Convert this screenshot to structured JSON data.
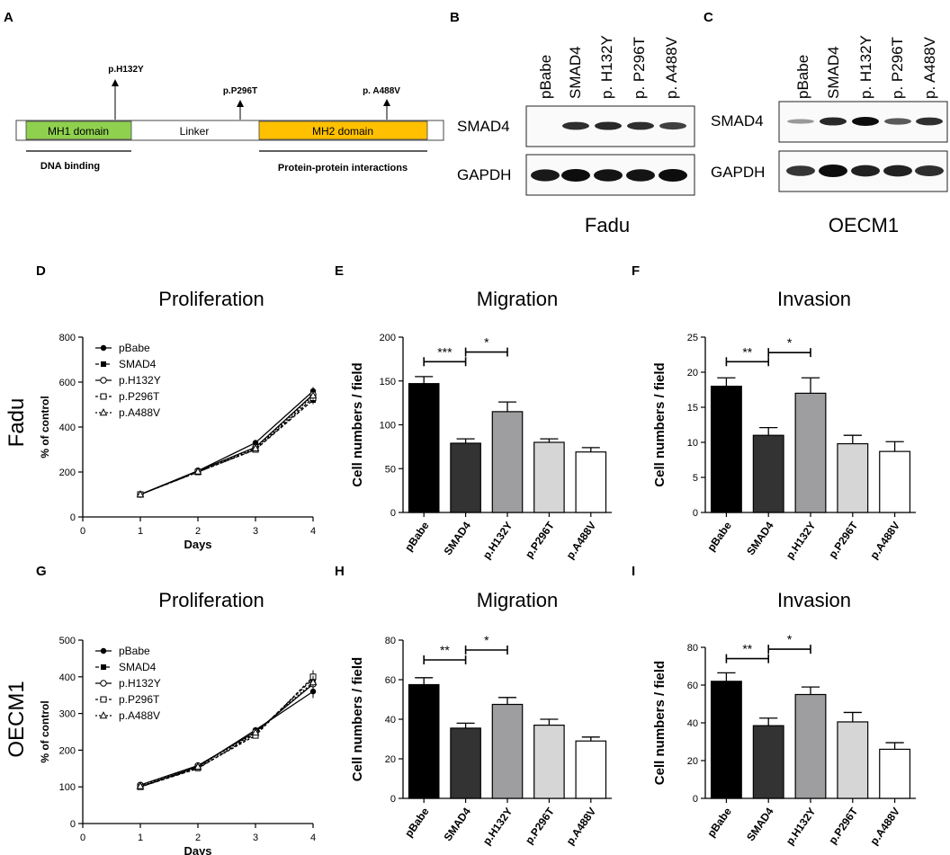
{
  "figure_label": "SMAD4 mutant figure",
  "panel_letters": {
    "A": "A",
    "B": "B",
    "C": "C",
    "D": "D",
    "E": "E",
    "F": "F",
    "G": "G",
    "H": "H",
    "I": "I"
  },
  "domain_map": {
    "mh1": "MH1 domain",
    "linker": "Linker",
    "mh2": "MH2 domain",
    "dna_binding": "DNA binding",
    "ppi": "Protein-protein interactions",
    "mut1": "p.H132Y",
    "mut2": "p.P296T",
    "mut3": "p. A488V",
    "colors": {
      "mh1": "#8fd14f",
      "mh2": "#ffc000"
    }
  },
  "western": {
    "lanes_b": [
      "pBabe",
      "SMAD4",
      "p. H132Y",
      "p. P296T",
      "p. A488V"
    ],
    "lanes_c": [
      "pBabe",
      "SMAD4",
      "p. H132Y",
      "p. P296T",
      "p. A488V"
    ],
    "row1": "SMAD4",
    "row2": "GAPDH",
    "cell_b": "Fadu",
    "cell_c": "OECM1",
    "smad4_b": [
      0.0,
      0.8,
      0.85,
      0.8,
      0.7
    ],
    "gapdh_b": [
      0.9,
      1.0,
      0.95,
      0.95,
      1.0
    ],
    "smad4_c": [
      0.2,
      0.85,
      1.0,
      0.55,
      0.8
    ],
    "gapdh_c": [
      0.7,
      1.0,
      0.85,
      0.85,
      0.75
    ]
  },
  "row_labels": {
    "fadu": "Fadu",
    "oecm1": "OECM1"
  },
  "chart_data": [
    {
      "panel": "D",
      "type": "line",
      "title": "Proliferation",
      "xlabel": "Days",
      "ylabel": "% of control",
      "x": [
        1,
        2,
        3,
        4
      ],
      "xlim": [
        0,
        4
      ],
      "ylim": [
        0,
        800
      ],
      "xticks": [
        "0",
        "1",
        "2",
        "3",
        "4"
      ],
      "yticks": [
        "0",
        "200",
        "400",
        "600",
        "800"
      ],
      "series": [
        {
          "name": "pBabe",
          "values": [
            100,
            205,
            330,
            560
          ]
        },
        {
          "name": "SMAD4",
          "values": [
            100,
            200,
            300,
            520
          ]
        },
        {
          "name": "p.H132Y",
          "values": [
            100,
            205,
            310,
            545
          ]
        },
        {
          "name": "p.P296T",
          "values": [
            100,
            200,
            300,
            530
          ]
        },
        {
          "name": "p.A488V",
          "values": [
            100,
            202,
            305,
            540
          ]
        }
      ]
    },
    {
      "panel": "E",
      "type": "bar",
      "title": "Migration",
      "ylabel": "Cell numbers / field",
      "categories": [
        "pBabe",
        "SMAD4",
        "p.H132Y",
        "p.P296T",
        "p.A488V"
      ],
      "values": [
        147,
        79,
        115,
        80,
        69
      ],
      "errors": [
        8,
        5,
        11,
        4,
        5
      ],
      "ylim": [
        0,
        200
      ],
      "yticks": [
        "0",
        "50",
        "100",
        "150",
        "200"
      ],
      "sig": [
        {
          "from": 0,
          "to": 1,
          "label": "***",
          "y": 172
        },
        {
          "from": 1,
          "to": 2,
          "label": "*",
          "y": 183
        }
      ]
    },
    {
      "panel": "F",
      "type": "bar",
      "title": "Invasion",
      "ylabel": "Cell numbers / field",
      "categories": [
        "pBabe",
        "SMAD4",
        "p.H132Y",
        "p.P296T",
        "p.A488V"
      ],
      "values": [
        18,
        11,
        17,
        9.8,
        8.7
      ],
      "errors": [
        1.2,
        1.1,
        2.2,
        1.2,
        1.4
      ],
      "ylim": [
        0,
        25
      ],
      "yticks": [
        "0",
        "5",
        "10",
        "15",
        "20",
        "25"
      ],
      "sig": [
        {
          "from": 0,
          "to": 1,
          "label": "**",
          "y": 21.5
        },
        {
          "from": 1,
          "to": 2,
          "label": "*",
          "y": 22.8
        }
      ]
    },
    {
      "panel": "G",
      "type": "line",
      "title": "Proliferation",
      "xlabel": "Days",
      "ylabel": "% of control",
      "x": [
        1,
        2,
        3,
        4
      ],
      "xlim": [
        0,
        4
      ],
      "ylim": [
        0,
        500
      ],
      "xticks": [
        "0",
        "1",
        "2",
        "3",
        "4"
      ],
      "yticks": [
        "0",
        "100",
        "200",
        "300",
        "400",
        "500"
      ],
      "series": [
        {
          "name": "pBabe",
          "values": [
            100,
            155,
            255,
            360
          ]
        },
        {
          "name": "SMAD4",
          "values": [
            100,
            150,
            245,
            395
          ]
        },
        {
          "name": "p.H132Y",
          "values": [
            105,
            158,
            250,
            380
          ]
        },
        {
          "name": "p.P296T",
          "values": [
            100,
            152,
            240,
            400
          ]
        },
        {
          "name": "p.A488V",
          "values": [
            102,
            155,
            248,
            385
          ]
        }
      ]
    },
    {
      "panel": "H",
      "type": "bar",
      "title": "Migration",
      "ylabel": "Cell numbers / field",
      "categories": [
        "pBabe",
        "SMAD4",
        "p.H132Y",
        "p.P296T",
        "p.A488V"
      ],
      "values": [
        57.5,
        35.5,
        47.5,
        37,
        29
      ],
      "errors": [
        3.5,
        2.5,
        3.5,
        3,
        2
      ],
      "ylim": [
        0,
        80
      ],
      "yticks": [
        "0",
        "20",
        "40",
        "60",
        "80"
      ],
      "sig": [
        {
          "from": 0,
          "to": 1,
          "label": "**",
          "y": 70
        },
        {
          "from": 1,
          "to": 2,
          "label": "*",
          "y": 75
        }
      ]
    },
    {
      "panel": "I",
      "type": "bar",
      "title": "Invasion",
      "ylabel": "Cell numbers / field",
      "categories": [
        "pBabe",
        "SMAD4",
        "p.H132Y",
        "p.P296T",
        "p.A488V"
      ],
      "values": [
        62,
        38.5,
        55,
        40.5,
        26
      ],
      "errors": [
        4.5,
        4,
        4,
        5,
        3.5
      ],
      "ylim": [
        0,
        80
      ],
      "yticks": [
        "0",
        "20",
        "40",
        "60",
        "80"
      ],
      "sig": [
        {
          "from": 0,
          "to": 1,
          "label": "**",
          "y": 74
        },
        {
          "from": 1,
          "to": 2,
          "label": "*",
          "y": 79
        }
      ]
    }
  ]
}
